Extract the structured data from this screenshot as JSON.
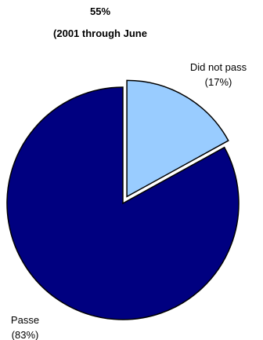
{
  "chart_data": {
    "type": "pie",
    "title": "55%",
    "subtitle": "(2001 through June",
    "slices": [
      {
        "label": "Did not pass",
        "value": 17,
        "value_text": "(17%)",
        "color": "#99ccff",
        "exploded": true
      },
      {
        "label": "Passe",
        "value": 83,
        "value_text": "(83%)",
        "color": "#000080",
        "exploded": false
      }
    ],
    "start": "12 o'clock",
    "direction": "clockwise",
    "legend": "none"
  }
}
